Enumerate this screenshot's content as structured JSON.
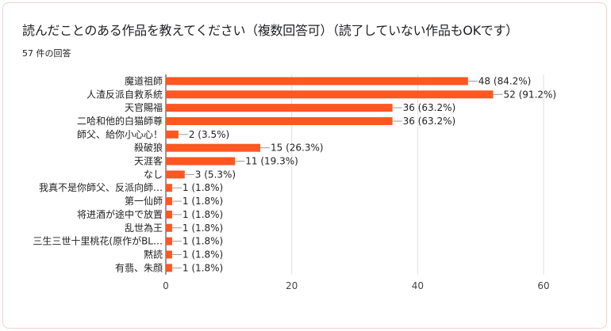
{
  "header": {
    "title": "読んだことのある作品を教えてください（複数回答可）（読了していない作品もOKです）",
    "response_count": "57 件の回答"
  },
  "chart_data": {
    "type": "bar",
    "orientation": "horizontal",
    "categories": [
      "魔道祖師",
      "人渣反派自救系統",
      "天官賜福",
      "二哈和他的白猫師尊",
      "師父、給你小心心！",
      "殺破狼",
      "天涯客",
      "なし",
      "我真不是你師父、反派向師…",
      "第一仙師",
      "将进酒が途中で放置",
      "乱世為王",
      "三生三世十里桃花(原作がBL…",
      "黙読",
      "有翡、朱顔"
    ],
    "values": [
      48,
      52,
      36,
      36,
      2,
      15,
      11,
      3,
      1,
      1,
      1,
      1,
      1,
      1,
      1
    ],
    "value_labels": [
      "48 (84.2%)",
      "52 (91.2%)",
      "36 (63.2%)",
      "36 (63.2%)",
      "2 (3.5%)",
      "15 (26.3%)",
      "11 (19.3%)",
      "3 (5.3%)",
      "1 (1.8%)",
      "1 (1.8%)",
      "1 (1.8%)",
      "1 (1.8%)",
      "1 (1.8%)",
      "1 (1.8%)",
      "1 (1.8%)"
    ],
    "xlim": [
      0,
      60
    ],
    "xticks": [
      "0",
      "20",
      "40",
      "60"
    ],
    "bar_color": "#ff5722",
    "grid": true
  }
}
